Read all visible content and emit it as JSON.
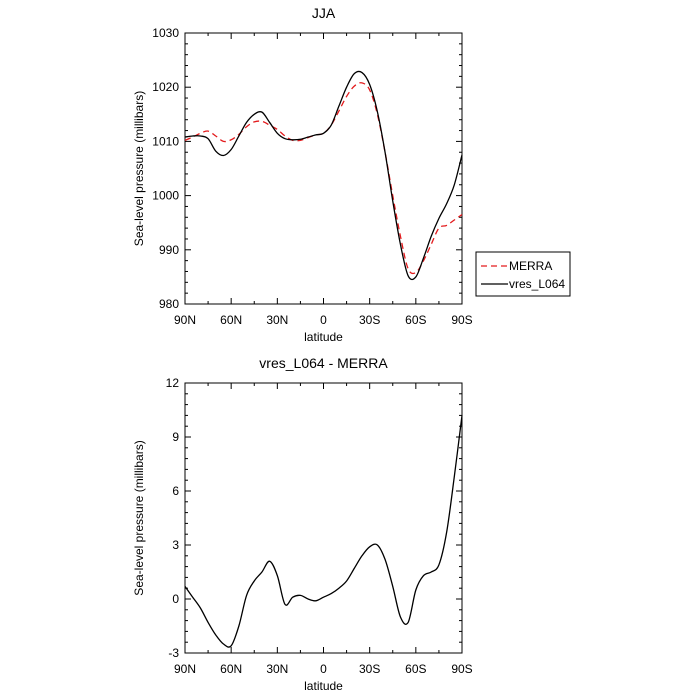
{
  "chart_data": [
    {
      "type": "line",
      "title": "JJA",
      "xlabel": "latitude",
      "ylabel": "Sea-level pressure (millibars)",
      "x_domain": [
        90,
        -90
      ],
      "xticks": [
        90,
        60,
        30,
        0,
        -30,
        -60,
        -90
      ],
      "xtick_labels": [
        "90N",
        "60N",
        "30N",
        "0",
        "30S",
        "60S",
        "90S"
      ],
      "ylim": [
        980,
        1030
      ],
      "yticks": [
        980,
        990,
        1000,
        1010,
        1020,
        1030
      ],
      "ytick_labels": [
        "980",
        "990",
        "1000",
        "1010",
        "1020",
        "1030"
      ],
      "legend_position": "right",
      "series": [
        {
          "name": "MERRA",
          "color": "#e31a1c",
          "dash": "dashed",
          "x": [
            90,
            85,
            80,
            75,
            70,
            65,
            60,
            55,
            50,
            45,
            40,
            35,
            30,
            25,
            20,
            15,
            10,
            5,
            0,
            -5,
            -10,
            -15,
            -20,
            -25,
            -30,
            -35,
            -40,
            -45,
            -50,
            -55,
            -60,
            -65,
            -70,
            -75,
            -80,
            -85,
            -90
          ],
          "y": [
            1010.2,
            1010.8,
            1011.5,
            1011.9,
            1011.0,
            1010.0,
            1010.3,
            1011.3,
            1012.7,
            1013.6,
            1013.7,
            1013.0,
            1012.2,
            1011.0,
            1010.2,
            1010.2,
            1010.7,
            1011.2,
            1011.5,
            1013.0,
            1015.6,
            1018.3,
            1020.2,
            1020.8,
            1019.5,
            1015.0,
            1008.0,
            1000.0,
            992.5,
            986.5,
            985.8,
            988.0,
            991.0,
            994.0,
            994.5,
            995.5,
            996.5
          ]
        },
        {
          "name": "vres_L064",
          "color": "#000000",
          "dash": "solid",
          "x": [
            90,
            85,
            80,
            75,
            70,
            65,
            60,
            55,
            50,
            45,
            40,
            35,
            30,
            25,
            20,
            15,
            10,
            5,
            0,
            -5,
            -10,
            -15,
            -20,
            -25,
            -30,
            -35,
            -40,
            -45,
            -50,
            -55,
            -60,
            -65,
            -70,
            -75,
            -80,
            -85,
            -90
          ],
          "y": [
            1010.8,
            1011.0,
            1011.0,
            1010.5,
            1008.2,
            1007.4,
            1008.5,
            1011.0,
            1013.5,
            1015.0,
            1015.4,
            1013.5,
            1011.5,
            1010.5,
            1010.3,
            1010.4,
            1010.8,
            1011.2,
            1011.5,
            1013.0,
            1016.5,
            1020.0,
            1022.5,
            1022.7,
            1020.5,
            1015.5,
            1008.0,
            999.0,
            991.0,
            985.2,
            985.0,
            988.5,
            992.5,
            995.8,
            998.5,
            1002.0,
            1007.5
          ]
        }
      ]
    },
    {
      "type": "line",
      "title": "vres_L064 - MERRA",
      "xlabel": "latitude",
      "ylabel": "Sea-level pressure (millibars)",
      "x_domain": [
        90,
        -90
      ],
      "xticks": [
        90,
        60,
        30,
        0,
        -30,
        -60,
        -90
      ],
      "xtick_labels": [
        "90N",
        "60N",
        "30N",
        "0",
        "30S",
        "60S",
        "90S"
      ],
      "ylim": [
        -3,
        12
      ],
      "yticks": [
        -3,
        0,
        3,
        6,
        9,
        12
      ],
      "ytick_labels": [
        "-3",
        "0",
        "3",
        "6",
        "9",
        "12"
      ],
      "series": [
        {
          "color": "#000000",
          "dash": "solid",
          "x": [
            90,
            85,
            80,
            75,
            70,
            65,
            60,
            55,
            50,
            45,
            40,
            35,
            30,
            25,
            20,
            15,
            10,
            5,
            0,
            -5,
            -10,
            -15,
            -20,
            -25,
            -30,
            -35,
            -40,
            -45,
            -50,
            -55,
            -60,
            -65,
            -70,
            -75,
            -80,
            -85,
            -90
          ],
          "y": [
            0.7,
            0.1,
            -0.5,
            -1.3,
            -2.0,
            -2.5,
            -2.6,
            -1.5,
            0.2,
            1.0,
            1.5,
            2.1,
            1.3,
            -0.3,
            0.1,
            0.2,
            0.0,
            -0.1,
            0.1,
            0.3,
            0.6,
            1.0,
            1.7,
            2.4,
            2.9,
            3.0,
            2.2,
            0.7,
            -1.0,
            -1.3,
            0.5,
            1.3,
            1.5,
            1.9,
            3.7,
            6.8,
            10.2
          ]
        }
      ]
    }
  ]
}
